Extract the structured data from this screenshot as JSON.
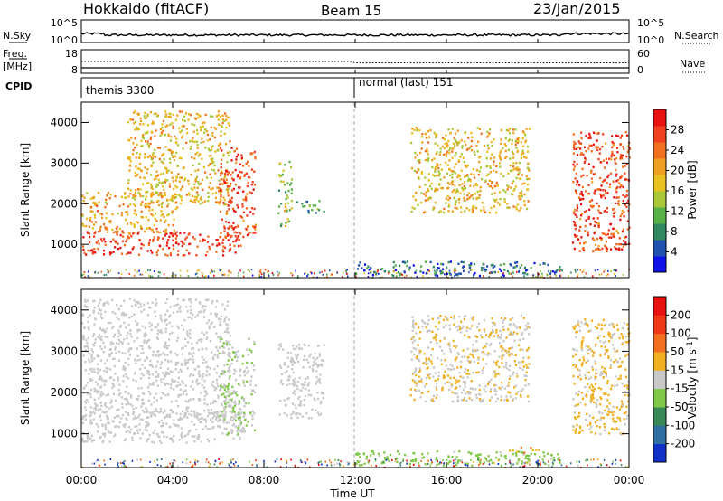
{
  "header": {
    "radar": "Hokkaido (fitACF)",
    "beam": "Beam 15",
    "date": "23/Jan/2015"
  },
  "summary": {
    "nsky_label": "N.Sky",
    "nsky_ticks": [
      "10^5",
      "10^0"
    ],
    "nsearch_label": "N.Search",
    "nsearch_ticks": [
      "10^5",
      "10^0"
    ],
    "freq_label": "Freq.",
    "freq_unit": "[MHz]",
    "freq_ticks": [
      "18",
      "8"
    ],
    "nave_label": "Nave",
    "nave_ticks": [
      "60",
      "0"
    ],
    "cpid_label": "CPID",
    "cpid_segments": [
      {
        "label": "themis 3300",
        "start_hour": 0
      },
      {
        "label": "normal (fast) 151",
        "start_hour": 12
      }
    ]
  },
  "axes": {
    "ylabel": "Slant Range [km]",
    "yticks": [
      "1000",
      "2000",
      "3000",
      "4000"
    ],
    "xlabel": "Time UT",
    "xticks": [
      "00:00",
      "04:00",
      "08:00",
      "12:00",
      "16:00",
      "20:00",
      "00:00"
    ]
  },
  "power_colorbar": {
    "label": "Power [dB]",
    "ticks": [
      "4",
      "8",
      "12",
      "16",
      "20",
      "24",
      "28"
    ],
    "colors": [
      "#1010e8",
      "#2050b0",
      "#308860",
      "#58b048",
      "#a8c838",
      "#e8c020",
      "#f0a020",
      "#f07020",
      "#f04020",
      "#e81010"
    ]
  },
  "velocity_colorbar": {
    "label": "Velocity [m s",
    "label_sup": "-1",
    "label_end": "]",
    "ticks": [
      "200",
      "100",
      "50",
      "15",
      "-15",
      "-50",
      "-100",
      "-200"
    ],
    "colors": [
      "#1030c8",
      "#3070a0",
      "#3a8858",
      "#80c848",
      "#c8c8c8",
      "#f0b020",
      "#f07020",
      "#f03818",
      "#e81010"
    ]
  },
  "chart_data": [
    {
      "type": "heatmap",
      "title": "Power [dB]",
      "xlabel": "Time UT",
      "ylabel": "Slant Range [km]",
      "xlim": [
        0,
        24
      ],
      "ylim": [
        180,
        4500
      ],
      "clim": [
        0,
        31
      ],
      "regions": [
        {
          "t0": 0.0,
          "t1": 7.0,
          "r0": 750,
          "r1": 1350,
          "value": 27
        },
        {
          "t0": 0.0,
          "t1": 4.2,
          "r0": 1300,
          "r1": 2300,
          "value": 20
        },
        {
          "t0": 2.0,
          "t1": 6.5,
          "r0": 2000,
          "r1": 4300,
          "value": 18
        },
        {
          "t0": 6.0,
          "t1": 7.6,
          "r0": 1200,
          "r1": 3400,
          "value": 26
        },
        {
          "t0": 8.6,
          "t1": 9.2,
          "r0": 1400,
          "r1": 3100,
          "value": 14
        },
        {
          "t0": 9.4,
          "t1": 10.6,
          "r0": 1800,
          "r1": 2100,
          "value": 9
        },
        {
          "t0": 14.4,
          "t1": 19.6,
          "r0": 1800,
          "r1": 3900,
          "value": 18
        },
        {
          "t0": 21.5,
          "t1": 24.0,
          "r0": 850,
          "r1": 3800,
          "value": 26
        },
        {
          "t0": 12.0,
          "t1": 21.0,
          "r0": 250,
          "r1": 600,
          "value": 6
        }
      ]
    },
    {
      "type": "heatmap",
      "title": "Velocity [m s-1]",
      "xlabel": "Time UT",
      "ylabel": "Slant Range [km]",
      "xlim": [
        0,
        24
      ],
      "ylim": [
        180,
        4500
      ],
      "clim": [
        -200,
        200
      ],
      "regions": [
        {
          "t0": 0.0,
          "t1": 7.2,
          "r0": 800,
          "r1": 1600,
          "value": 0
        },
        {
          "t0": 0.0,
          "t1": 6.5,
          "r0": 1400,
          "r1": 4300,
          "value": 0
        },
        {
          "t0": 6.0,
          "t1": 7.6,
          "r0": 1000,
          "r1": 3400,
          "value": -20
        },
        {
          "t0": 8.6,
          "t1": 10.6,
          "r0": 1400,
          "r1": 3200,
          "value": 0
        },
        {
          "t0": 14.4,
          "t1": 19.6,
          "r0": 1800,
          "r1": 3900,
          "value": 20
        },
        {
          "t0": 21.5,
          "t1": 24.0,
          "r0": 1000,
          "r1": 3800,
          "value": 30
        },
        {
          "t0": 12.0,
          "t1": 21.0,
          "r0": 250,
          "r1": 600,
          "value": -40
        },
        {
          "t0": 18.6,
          "t1": 20.2,
          "r0": 560,
          "r1": 700,
          "value": 60
        }
      ]
    }
  ]
}
